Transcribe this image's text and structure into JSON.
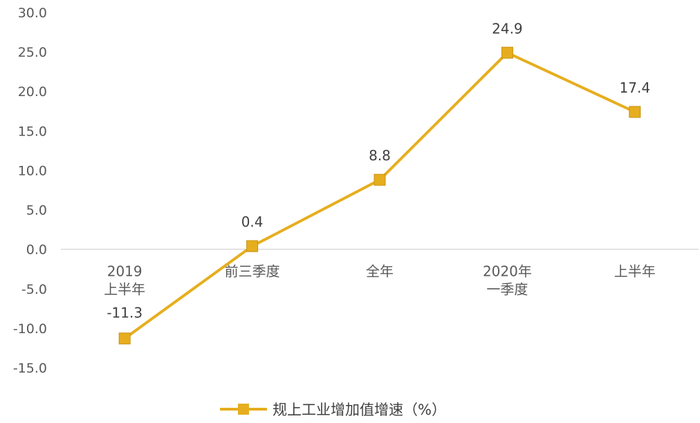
{
  "colors": {
    "series": "#E6AE1E",
    "zero_line": "#D9D9D9",
    "text": "#595959"
  },
  "chart_data": {
    "type": "line",
    "categories": [
      [
        "2019",
        "上半年"
      ],
      [
        "前三季度"
      ],
      [
        "全年"
      ],
      [
        "2020年",
        "一季度"
      ],
      [
        "上半年"
      ]
    ],
    "series": [
      {
        "name": "规上工业增加值增速（%）",
        "values": [
          -11.3,
          0.4,
          8.8,
          24.9,
          17.4
        ]
      }
    ],
    "data_labels": [
      "-11.3",
      "0.4",
      "8.8",
      "24.9",
      "17.4"
    ],
    "y_ticks": [
      "30.0",
      "25.0",
      "20.0",
      "15.0",
      "10.0",
      "5.0",
      "0.0",
      "-5.0",
      "-10.0",
      "-15.0"
    ],
    "ylim": [
      -15,
      30
    ],
    "grid": false,
    "legend_position": "bottom"
  }
}
